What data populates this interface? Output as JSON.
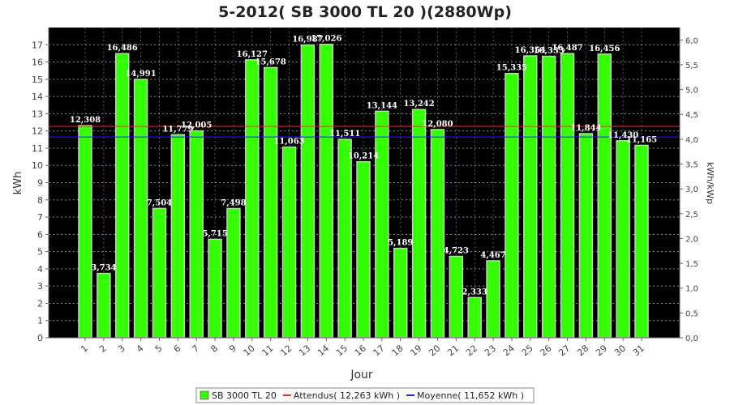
{
  "chart_data": {
    "type": "bar",
    "title": "5-2012( SB 3000 TL 20 )(2880Wp)",
    "xlabel": "Jour",
    "ylabel": "kWh",
    "y2label": "kWh/kWp",
    "categories": [
      "1",
      "2",
      "3",
      "4",
      "5",
      "6",
      "7",
      "8",
      "9",
      "10",
      "11",
      "12",
      "13",
      "14",
      "15",
      "16",
      "17",
      "18",
      "19",
      "20",
      "21",
      "22",
      "23",
      "24",
      "25",
      "26",
      "27",
      "28",
      "29",
      "30",
      "31"
    ],
    "series": [
      {
        "name": "SB 3000 TL 20",
        "color": "#33ff00",
        "values": [
          12.308,
          3.734,
          16.486,
          14.991,
          7.504,
          11.779,
          12.005,
          5.715,
          7.498,
          16.127,
          15.678,
          11.063,
          16.987,
          17.026,
          11.511,
          10.214,
          13.144,
          5.189,
          13.242,
          12.08,
          4.723,
          2.333,
          4.467,
          15.335,
          16.354,
          16.333,
          16.487,
          11.844,
          16.456,
          11.43,
          11.165
        ]
      }
    ],
    "data_labels": [
      "12,308",
      "3,734",
      "16,486",
      "14,991",
      "7,504",
      "11,779",
      "12,005",
      "5,715",
      "7,498",
      "16,127",
      "15,678",
      "11,063",
      "16,987",
      "17,026",
      "11,511",
      "10,214",
      "13,144",
      "5,189",
      "13,242",
      "12,080",
      "4,723",
      "2,333",
      "4,467",
      "15,335",
      "16,354",
      "16,333",
      "16,487",
      "11,844",
      "16,456",
      "11,430",
      "11,165"
    ],
    "ylim": [
      0,
      18
    ],
    "yticks": [
      "0",
      "1",
      "2",
      "3",
      "4",
      "5",
      "6",
      "7",
      "8",
      "9",
      "10",
      "11",
      "12",
      "13",
      "14",
      "15",
      "16",
      "17"
    ],
    "y2lim": [
      0,
      6.25
    ],
    "y2ticks": [
      "0,0",
      "0,5",
      "1,0",
      "1,5",
      "2,0",
      "2,5",
      "3,0",
      "3,5",
      "4,0",
      "4,5",
      "5,0",
      "5,5",
      "6,0"
    ],
    "reference_lines": [
      {
        "name": "Attendus( 12,263 kWh )",
        "value": 12.263,
        "color": "#ff2222"
      },
      {
        "name": "Moyenne( 11,652 kWh )",
        "value": 11.652,
        "color": "#2222ff"
      }
    ],
    "background": "#000000",
    "grid": true,
    "legend_position": "bottom-center"
  }
}
